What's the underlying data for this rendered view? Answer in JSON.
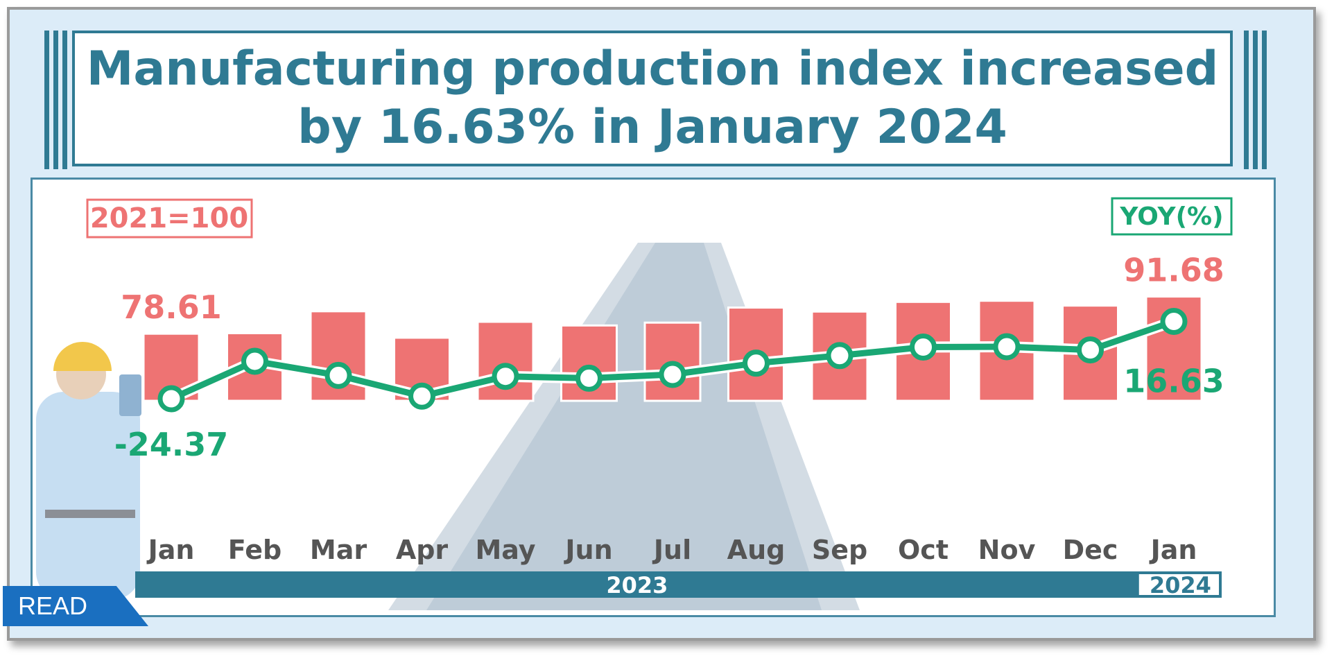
{
  "title": {
    "line1": "Manufacturing  production index increased",
    "line2": "by 16.63%  in January  2024"
  },
  "badge": "READ",
  "colors": {
    "accent": "#2f7a93",
    "bar": "#ee7373",
    "line": "#1aa774",
    "panel_bg": "#dcecf8"
  },
  "chart_data": {
    "type": "bar+line",
    "base_label": "2021=100",
    "yoy_label": "YOY(%)",
    "categories": [
      "Jan",
      "Feb",
      "Mar",
      "Apr",
      "May",
      "Jun",
      "Jul",
      "Aug",
      "Sep",
      "Oct",
      "Nov",
      "Dec",
      "Jan"
    ],
    "year_groups": [
      {
        "label": "2023",
        "span": 12
      },
      {
        "label": "2024",
        "span": 1
      }
    ],
    "series": [
      {
        "kind": "bar",
        "values": [
          78.61,
          78.8,
          86.5,
          77.2,
          82.8,
          81.5,
          82.5,
          87.8,
          86.4,
          89.8,
          90.2,
          88.5,
          91.68
        ]
      },
      {
        "kind": "line",
        "values": [
          -24.37,
          -4.5,
          -12.0,
          -23.0,
          -12.5,
          -13.5,
          -11.5,
          -5.5,
          -1.5,
          3.0,
          3.2,
          1.5,
          16.63
        ]
      }
    ],
    "labels": {
      "first_bar": "78.61",
      "last_bar": "91.68",
      "first_line": "-24.37",
      "last_line": "16.63"
    }
  }
}
